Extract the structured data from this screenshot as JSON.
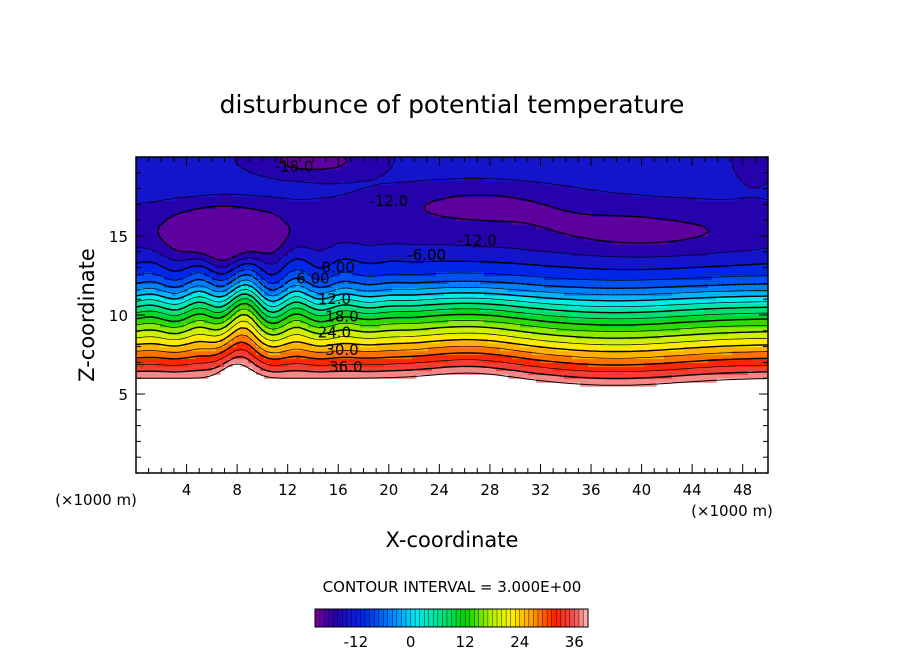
{
  "chart_data": {
    "type": "heatmap",
    "title": "disturbunce of potential temperature",
    "xlabel": "X-coordinate",
    "ylabel": "Z-coordinate",
    "x_unit": "(×1000 m)",
    "y_unit": "(×1000 m)",
    "xlim": [
      0,
      50
    ],
    "ylim": [
      0,
      20
    ],
    "x_ticks": [
      "4",
      "8",
      "12",
      "16",
      "20",
      "24",
      "28",
      "32",
      "36",
      "40",
      "44",
      "48"
    ],
    "x_tick_values": [
      4,
      8,
      12,
      16,
      20,
      24,
      28,
      32,
      36,
      40,
      44,
      48
    ],
    "y_ticks": [
      "5",
      "10",
      "15"
    ],
    "y_tick_values": [
      5,
      10,
      15
    ],
    "contour_interval_text": "CONTOUR INTERVAL = 3.000E+00",
    "contour_interval": 3.0,
    "value_range": [
      -21,
      39
    ],
    "contour_labels": [
      {
        "text": "-18.0",
        "x": 12.5,
        "z": 19.4
      },
      {
        "text": "-12.0",
        "x": 20.0,
        "z": 17.2
      },
      {
        "text": "-12.0",
        "x": 27.0,
        "z": 14.7
      },
      {
        "text": "-6.00",
        "x": 23.0,
        "z": 13.8
      },
      {
        "text": "0.00",
        "x": 16.0,
        "z": 13.0
      },
      {
        "text": "6.00",
        "x": 14.0,
        "z": 12.3
      },
      {
        "text": "12.0",
        "x": 15.7,
        "z": 11.0
      },
      {
        "text": "18.0",
        "x": 16.3,
        "z": 9.9
      },
      {
        "text": "24.0",
        "x": 15.7,
        "z": 8.9
      },
      {
        "text": "30.0",
        "x": 16.3,
        "z": 7.8
      },
      {
        "text": "36.0",
        "x": 16.6,
        "z": 6.7
      }
    ],
    "colorbar": {
      "ticks": [
        "-12",
        "0",
        "12",
        "24",
        "36"
      ],
      "tick_values": [
        -12,
        0,
        12,
        24,
        36
      ],
      "min": -21,
      "max": 39
    },
    "colors": {
      "background": "#ffffff",
      "axis": "#000000"
    }
  }
}
